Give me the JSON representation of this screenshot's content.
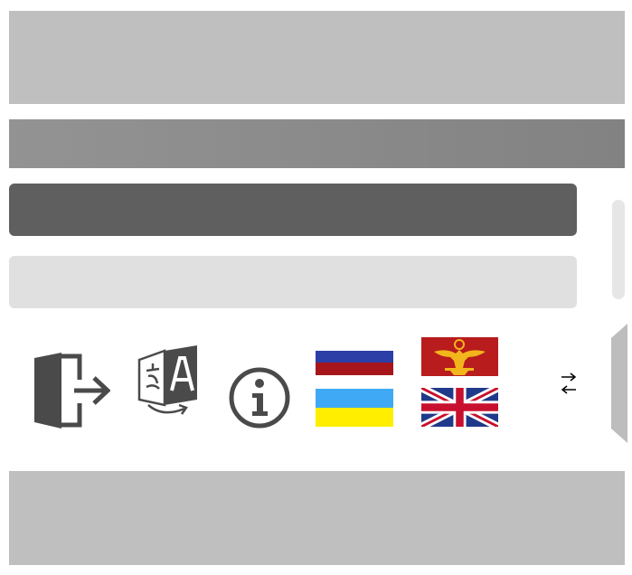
{
  "panels": {
    "top_banner": "",
    "header_bar": "",
    "menu_item_active": "",
    "menu_item_inactive": "",
    "footer_bar": ""
  },
  "toolbar": {
    "icons": [
      "exit-icon",
      "translate-icon",
      "info-icon",
      "russia-flag-icon",
      "ukraine-flag-icon",
      "roman-eagle-flag-icon",
      "uk-flag-icon",
      "swap-arrows-icon"
    ]
  },
  "colors": {
    "banner_gray": "#bfbfbf",
    "header_gray": "#8a8a8a",
    "active_item": "#5f5f5f",
    "inactive_item": "#e0e0e0",
    "icon_dark": "#4a4a4a",
    "ru_blue": "#2b3fa6",
    "ru_red": "#a6161a",
    "ua_blue": "#3fa9f5",
    "ua_yellow": "#ffee00",
    "roman_red": "#b81c1c",
    "roman_gold": "#f2b51c",
    "uk_blue": "#1f3a8a",
    "uk_red": "#c8102e"
  }
}
